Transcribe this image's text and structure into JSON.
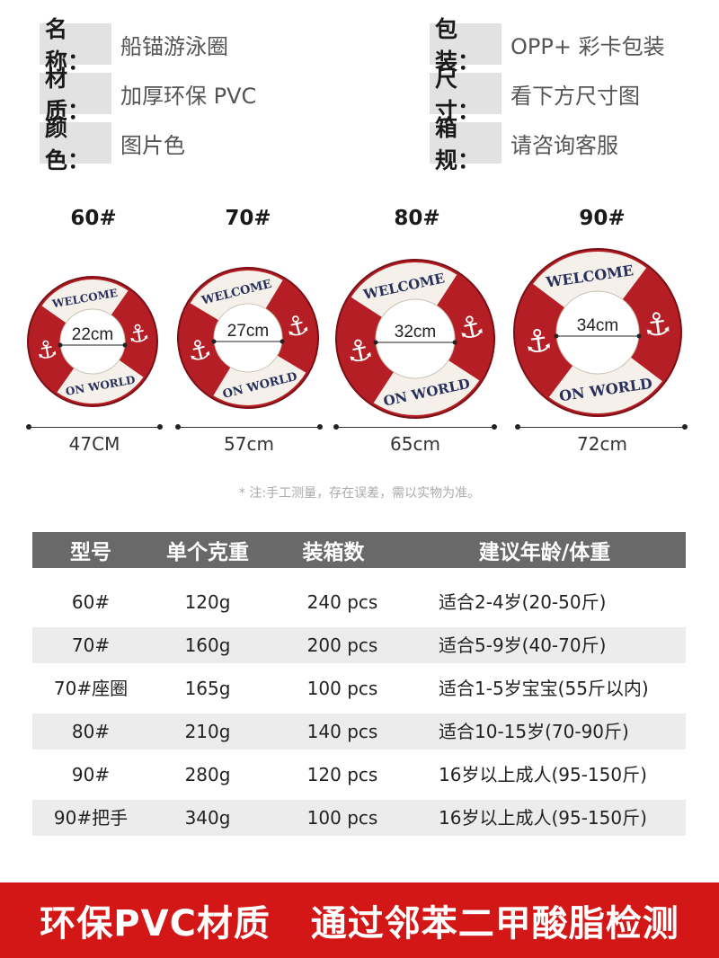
{
  "specs": {
    "name_key": "名称：",
    "name_val": "船锚游泳圈",
    "material_key": "材质：",
    "material_val": "加厚环保 PVC",
    "color_key": "颜色：",
    "color_val": "图片色",
    "package_key": "包装：",
    "package_val": "OPP+ 彩卡包装",
    "size_key": "尺寸：",
    "size_val": "看下方尺寸图",
    "box_key": "箱规：",
    "box_val": "请咨询客服"
  },
  "rings": [
    {
      "label": "60#",
      "inner": "22cm",
      "outer": "47CM"
    },
    {
      "label": "70#",
      "inner": "27cm",
      "outer": "57cm"
    },
    {
      "label": "80#",
      "inner": "32cm",
      "outer": "65cm"
    },
    {
      "label": "90#",
      "inner": "34cm",
      "outer": "72cm"
    }
  ],
  "ring_text": {
    "top": "WELCOME",
    "bottom": "ON WORLD"
  },
  "note": "* 注:手工测量，存在误差，需以实物为准。",
  "table": {
    "headers": [
      "型号",
      "单个克重",
      "装箱数",
      "建议年龄/体重"
    ],
    "rows": [
      [
        "60#",
        "120g",
        "240 pcs",
        "适合2-4岁(20-50斤)"
      ],
      [
        "70#",
        "160g",
        "200 pcs",
        "适合5-9岁(40-70斤)"
      ],
      [
        "70#座圈",
        "165g",
        "100  pcs",
        "适合1-5岁宝宝(55斤以内)"
      ],
      [
        "80#",
        "210g",
        "140 pcs",
        "适合10-15岁(70-90斤)"
      ],
      [
        "90#",
        "280g",
        "120 pcs",
        "16岁以上成人(95-150斤)"
      ],
      [
        "90#把手",
        "340g",
        "100 pcs",
        "16岁以上成人(95-150斤)"
      ]
    ]
  },
  "banner": "环保PVC材质   通过邻苯二甲酸脂检测",
  "colors": {
    "ring_red": "#b51e24",
    "ring_white": "#f5f1ea",
    "banner_red": "#d31717",
    "table_header": "#696969"
  }
}
